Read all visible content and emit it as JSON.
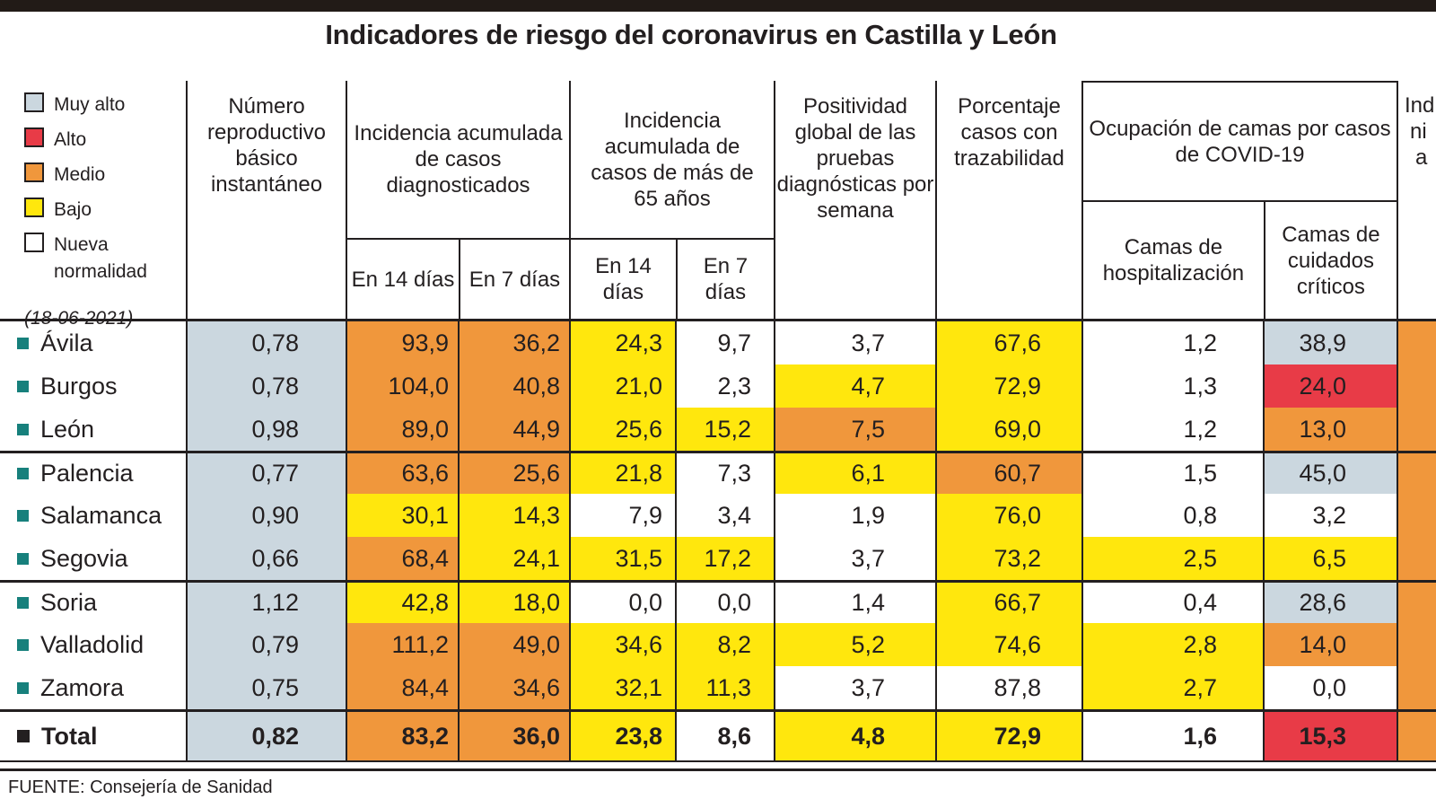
{
  "title": "Indicadores de riesgo del coronavirus en Castilla y León",
  "date_note": "(18-06-2021)",
  "source": "FUENTE: Consejería de Sanidad",
  "colors": {
    "ink": "#231f20",
    "topbar": "#221b17",
    "muyalto": "#cbd7df",
    "alto": "#e83b47",
    "medio": "#f0973c",
    "bajo": "#ffe70d",
    "nueva": "#ffffff",
    "bullet": "#17807c"
  },
  "legend": {
    "items": [
      {
        "level": "muyalto",
        "label": "Muy alto"
      },
      {
        "level": "alto",
        "label": "Alto"
      },
      {
        "level": "medio",
        "label": "Medio"
      },
      {
        "level": "bajo",
        "label": "Bajo"
      },
      {
        "level": "nueva",
        "label": "Nueva normalidad"
      }
    ]
  },
  "columns": {
    "reproductive": "Número reproductivo básico instantáneo",
    "ia_diag": "Incidencia acumulada de casos diagnosticados",
    "ia_65": "Incidencia acumulada de casos de más de 65 años",
    "en14": "En 14 días",
    "en7": "En 7 días",
    "positividad": "Positividad global de las pruebas diagnósticas por semana",
    "trazabilidad": "Porcentaje casos con trazabilidad",
    "ocupacion": "Ocupación de camas por casos de COVID-19",
    "camas_hosp": "Camas de hospitalización",
    "camas_crit": "Camas de cuidados críticos",
    "cut_fragment": [
      "Ind",
      "ni",
      "a"
    ]
  },
  "chart_data": {
    "type": "table",
    "column_keys": [
      "Número reproductivo básico instantáneo",
      "Incidencia acumulada de casos diagnosticados - En 14 días",
      "Incidencia acumulada de casos diagnosticados - En 7 días",
      "Incidencia acumulada de casos de más de 65 años - En 14 días",
      "Incidencia acumulada de casos de más de 65 años - En 7 días",
      "Positividad global de las pruebas diagnósticas por semana",
      "Porcentaje casos con trazabilidad",
      "Camas de hospitalización",
      "Camas de cuidados críticos"
    ],
    "levels_legend": [
      "muyalto = Muy alto",
      "alto = Alto",
      "medio = Medio",
      "bajo = Bajo",
      "nueva = Nueva normalidad"
    ],
    "rows": [
      {
        "name": "Ávila",
        "total": false,
        "group_start": false,
        "cut": "medio",
        "cells": [
          {
            "v": "0,78",
            "l": "muyalto"
          },
          {
            "v": "93,9",
            "l": "medio"
          },
          {
            "v": "36,2",
            "l": "medio"
          },
          {
            "v": "24,3",
            "l": "bajo"
          },
          {
            "v": "9,7",
            "l": "nueva"
          },
          {
            "v": "3,7",
            "l": "nueva"
          },
          {
            "v": "67,6",
            "l": "bajo"
          },
          {
            "v": "1,2",
            "l": "nueva"
          },
          {
            "v": "38,9",
            "l": "muyalto"
          }
        ]
      },
      {
        "name": "Burgos",
        "total": false,
        "group_start": false,
        "cut": "medio",
        "cells": [
          {
            "v": "0,78",
            "l": "muyalto"
          },
          {
            "v": "104,0",
            "l": "medio"
          },
          {
            "v": "40,8",
            "l": "medio"
          },
          {
            "v": "21,0",
            "l": "bajo"
          },
          {
            "v": "2,3",
            "l": "nueva"
          },
          {
            "v": "4,7",
            "l": "bajo"
          },
          {
            "v": "72,9",
            "l": "bajo"
          },
          {
            "v": "1,3",
            "l": "nueva"
          },
          {
            "v": "24,0",
            "l": "alto"
          }
        ]
      },
      {
        "name": "León",
        "total": false,
        "group_start": false,
        "cut": "medio",
        "cells": [
          {
            "v": "0,98",
            "l": "muyalto"
          },
          {
            "v": "89,0",
            "l": "medio"
          },
          {
            "v": "44,9",
            "l": "medio"
          },
          {
            "v": "25,6",
            "l": "bajo"
          },
          {
            "v": "15,2",
            "l": "bajo"
          },
          {
            "v": "7,5",
            "l": "medio"
          },
          {
            "v": "69,0",
            "l": "bajo"
          },
          {
            "v": "1,2",
            "l": "nueva"
          },
          {
            "v": "13,0",
            "l": "medio"
          }
        ]
      },
      {
        "name": "Palencia",
        "total": false,
        "group_start": true,
        "cut": "medio",
        "cells": [
          {
            "v": "0,77",
            "l": "muyalto"
          },
          {
            "v": "63,6",
            "l": "medio"
          },
          {
            "v": "25,6",
            "l": "medio"
          },
          {
            "v": "21,8",
            "l": "bajo"
          },
          {
            "v": "7,3",
            "l": "nueva"
          },
          {
            "v": "6,1",
            "l": "bajo"
          },
          {
            "v": "60,7",
            "l": "medio"
          },
          {
            "v": "1,5",
            "l": "nueva"
          },
          {
            "v": "45,0",
            "l": "muyalto"
          }
        ]
      },
      {
        "name": "Salamanca",
        "total": false,
        "group_start": false,
        "cut": "medio",
        "cells": [
          {
            "v": "0,90",
            "l": "muyalto"
          },
          {
            "v": "30,1",
            "l": "bajo"
          },
          {
            "v": "14,3",
            "l": "bajo"
          },
          {
            "v": "7,9",
            "l": "nueva"
          },
          {
            "v": "3,4",
            "l": "nueva"
          },
          {
            "v": "1,9",
            "l": "nueva"
          },
          {
            "v": "76,0",
            "l": "bajo"
          },
          {
            "v": "0,8",
            "l": "nueva"
          },
          {
            "v": "3,2",
            "l": "nueva"
          }
        ]
      },
      {
        "name": "Segovia",
        "total": false,
        "group_start": false,
        "cut": "medio",
        "cells": [
          {
            "v": "0,66",
            "l": "muyalto"
          },
          {
            "v": "68,4",
            "l": "medio"
          },
          {
            "v": "24,1",
            "l": "bajo"
          },
          {
            "v": "31,5",
            "l": "bajo"
          },
          {
            "v": "17,2",
            "l": "bajo"
          },
          {
            "v": "3,7",
            "l": "nueva"
          },
          {
            "v": "73,2",
            "l": "bajo"
          },
          {
            "v": "2,5",
            "l": "bajo"
          },
          {
            "v": "6,5",
            "l": "bajo"
          }
        ]
      },
      {
        "name": "Soria",
        "total": false,
        "group_start": true,
        "cut": "medio",
        "cells": [
          {
            "v": "1,12",
            "l": "muyalto"
          },
          {
            "v": "42,8",
            "l": "bajo"
          },
          {
            "v": "18,0",
            "l": "bajo"
          },
          {
            "v": "0,0",
            "l": "nueva"
          },
          {
            "v": "0,0",
            "l": "nueva"
          },
          {
            "v": "1,4",
            "l": "nueva"
          },
          {
            "v": "66,7",
            "l": "bajo"
          },
          {
            "v": "0,4",
            "l": "nueva"
          },
          {
            "v": "28,6",
            "l": "muyalto"
          }
        ]
      },
      {
        "name": "Valladolid",
        "total": false,
        "group_start": false,
        "cut": "medio",
        "cells": [
          {
            "v": "0,79",
            "l": "muyalto"
          },
          {
            "v": "111,2",
            "l": "medio"
          },
          {
            "v": "49,0",
            "l": "medio"
          },
          {
            "v": "34,6",
            "l": "bajo"
          },
          {
            "v": "8,2",
            "l": "bajo"
          },
          {
            "v": "5,2",
            "l": "bajo"
          },
          {
            "v": "74,6",
            "l": "bajo"
          },
          {
            "v": "2,8",
            "l": "bajo"
          },
          {
            "v": "14,0",
            "l": "medio"
          }
        ]
      },
      {
        "name": "Zamora",
        "total": false,
        "group_start": false,
        "cut": "medio",
        "cells": [
          {
            "v": "0,75",
            "l": "muyalto"
          },
          {
            "v": "84,4",
            "l": "medio"
          },
          {
            "v": "34,6",
            "l": "medio"
          },
          {
            "v": "32,1",
            "l": "bajo"
          },
          {
            "v": "11,3",
            "l": "bajo"
          },
          {
            "v": "3,7",
            "l": "nueva"
          },
          {
            "v": "87,8",
            "l": "nueva"
          },
          {
            "v": "2,7",
            "l": "bajo"
          },
          {
            "v": "0,0",
            "l": "nueva"
          }
        ]
      },
      {
        "name": "Total",
        "total": true,
        "group_start": true,
        "cut": "medio",
        "cells": [
          {
            "v": "0,82",
            "l": "muyalto"
          },
          {
            "v": "83,2",
            "l": "medio"
          },
          {
            "v": "36,0",
            "l": "medio"
          },
          {
            "v": "23,8",
            "l": "bajo"
          },
          {
            "v": "8,6",
            "l": "nueva"
          },
          {
            "v": "4,8",
            "l": "bajo"
          },
          {
            "v": "72,9",
            "l": "bajo"
          },
          {
            "v": "1,6",
            "l": "nueva"
          },
          {
            "v": "15,3",
            "l": "alto"
          }
        ]
      }
    ]
  }
}
